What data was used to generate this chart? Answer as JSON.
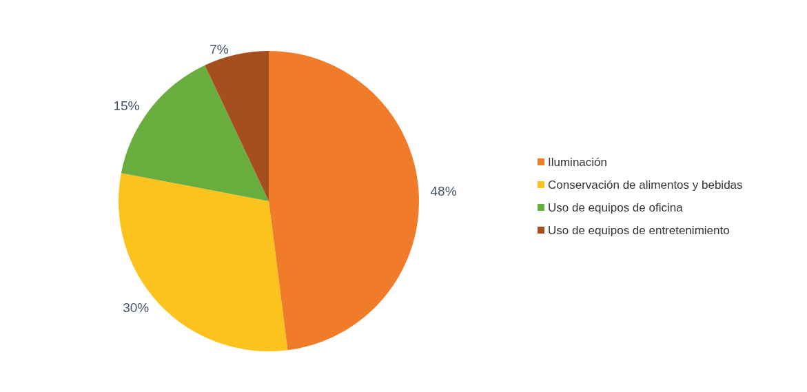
{
  "chart_data": {
    "type": "pie",
    "categories": [
      "Iluminación",
      "Conservación de alimentos y bebidas",
      "Uso de equipos de oficina",
      "Uso de equipos de entretenimiento"
    ],
    "values": [
      48,
      30,
      15,
      7
    ],
    "colors": [
      "#f07c2a",
      "#fcc21e",
      "#6aad3f",
      "#a54e1e"
    ],
    "value_labels": [
      "48%",
      "30%",
      "15%",
      "7%"
    ],
    "legend": "right"
  }
}
